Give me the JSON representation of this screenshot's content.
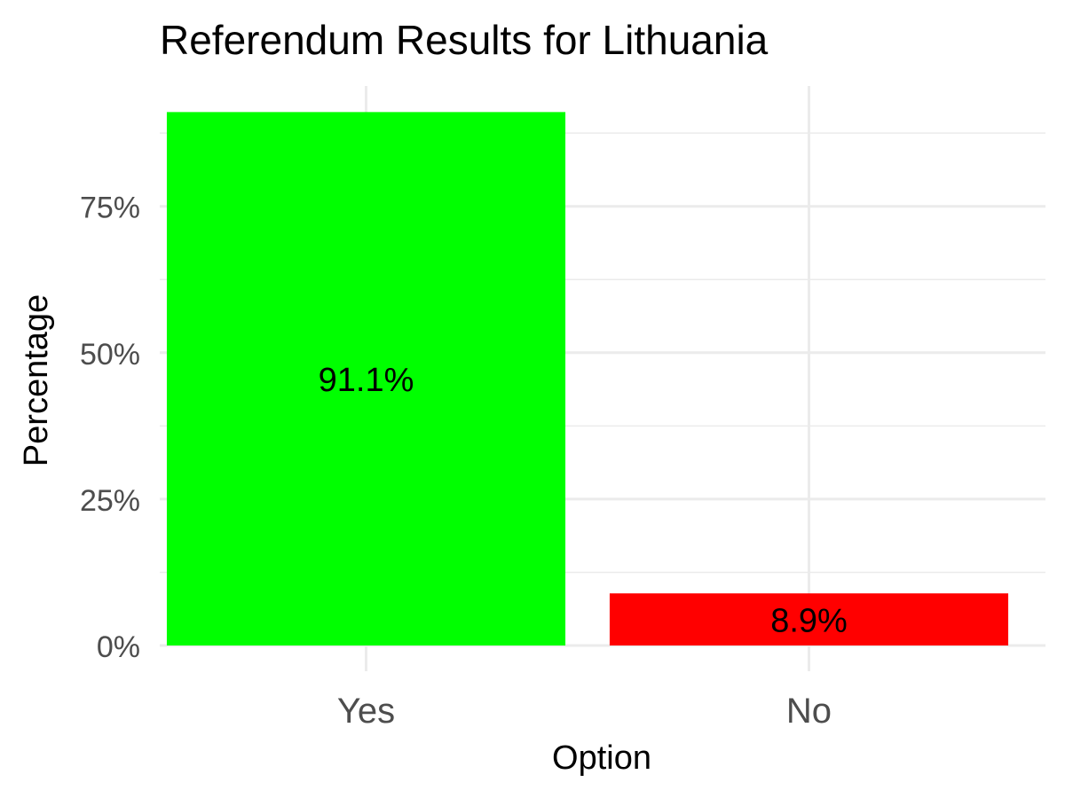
{
  "chart_data": {
    "type": "bar",
    "title": "Referendum Results for Lithuania",
    "xlabel": "Option",
    "ylabel": "Percentage",
    "categories": [
      "Yes",
      "No"
    ],
    "values": [
      91.1,
      8.9
    ],
    "data_labels": [
      "91.1%",
      "8.9%"
    ],
    "bar_colors": [
      "#00ff00",
      "#ff0000"
    ],
    "ylim": [
      0,
      100
    ],
    "y_ticks": [
      0,
      25,
      50,
      75
    ],
    "y_tick_labels": [
      "0%",
      "25%",
      "50%",
      "75%"
    ],
    "grid": true,
    "legend": "none"
  }
}
